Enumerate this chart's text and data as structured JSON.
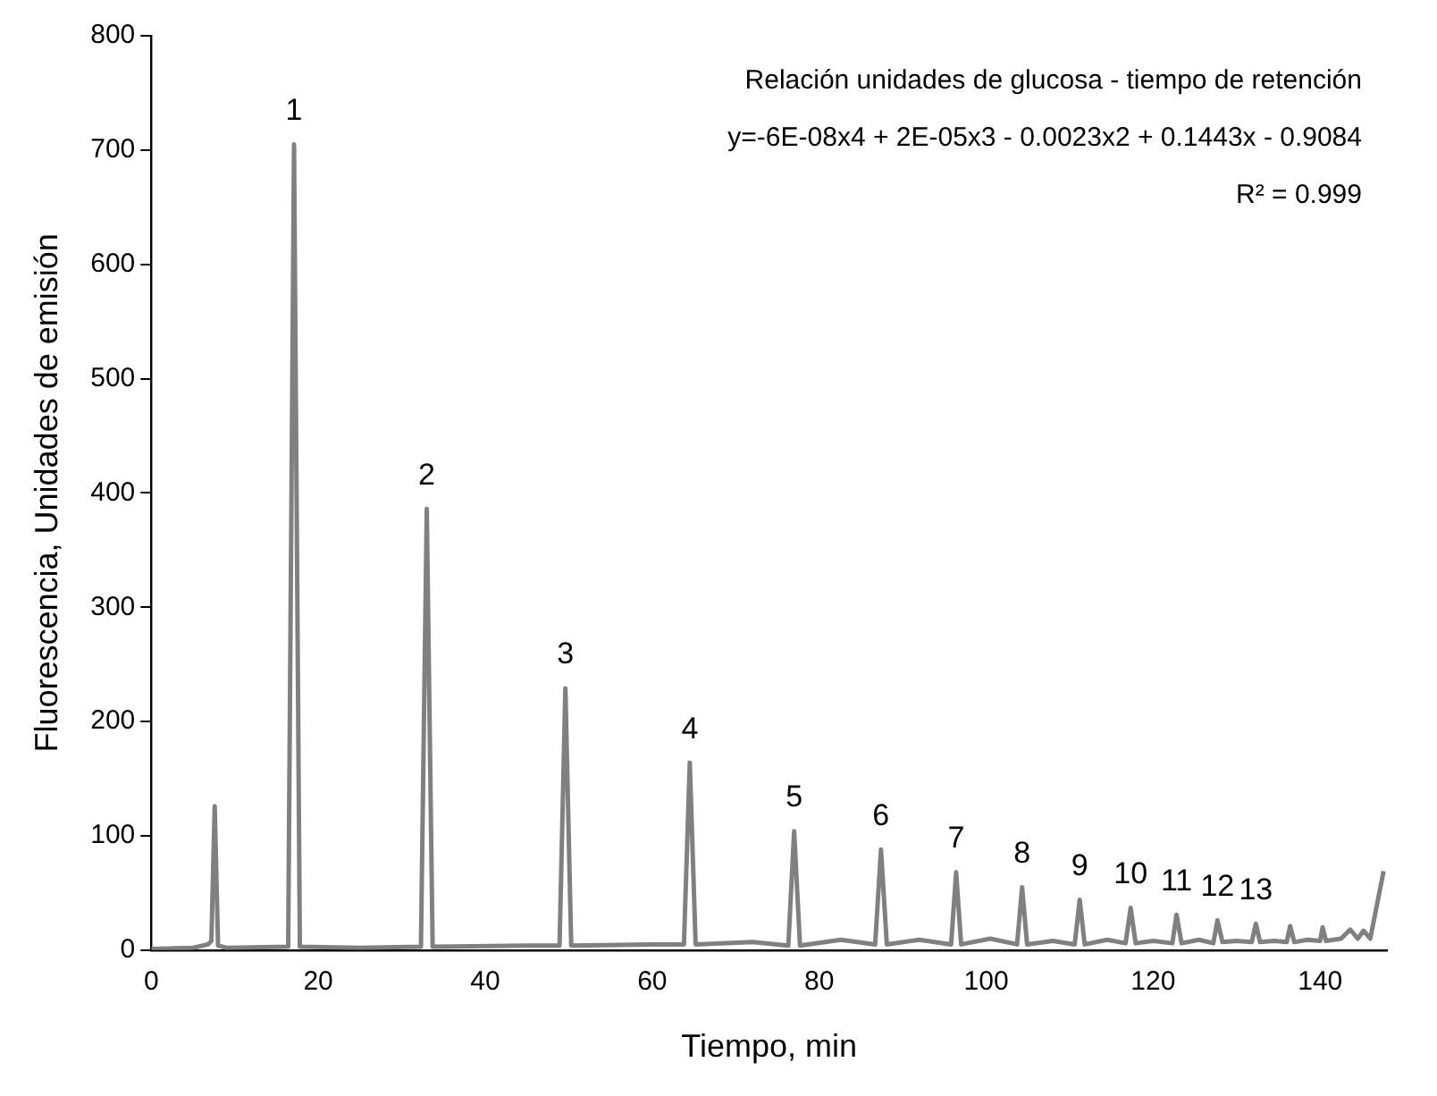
{
  "chart_data": {
    "type": "line",
    "xlabel": "Tiempo, min",
    "ylabel": "Fluorescencia, Unidades de emisión",
    "xlim": [
      0,
      148
    ],
    "xticks": [
      0,
      20,
      40,
      60,
      80,
      100,
      120,
      140
    ],
    "ylim": [
      0,
      800
    ],
    "yticks": [
      0,
      100,
      200,
      300,
      400,
      500,
      600,
      700,
      800
    ],
    "grid": false,
    "legend": false,
    "marker": "none",
    "line_style": "solid",
    "series": [
      {
        "color": "#808080",
        "x": [
          0,
          5,
          6.8,
          7.2,
          7.6,
          8.0,
          9,
          16.4,
          17.1,
          17.8,
          25,
          32.3,
          33.0,
          33.7,
          45,
          48.9,
          49.6,
          50.3,
          59.9,
          63.8,
          64.5,
          65.2,
          72,
          76.3,
          77.0,
          77.7,
          82.6,
          86.7,
          87.4,
          88.1,
          92,
          95.8,
          96.4,
          97.0,
          100.5,
          103.7,
          104.3,
          104.9,
          108,
          110.6,
          111.2,
          111.8,
          114.5,
          116.7,
          117.3,
          117.9,
          120,
          122.3,
          122.8,
          123.4,
          125.5,
          127.2,
          127.7,
          128.3,
          130,
          131.8,
          132.3,
          132.8,
          134.5,
          136,
          136.4,
          136.9,
          138.5,
          140.0,
          140.3,
          140.7,
          142.5,
          143.6,
          144.5,
          145.2,
          146,
          147.6
        ],
        "values": [
          1,
          2,
          5,
          8,
          126,
          4,
          2,
          3,
          705,
          3,
          2,
          3,
          386,
          3,
          4,
          4,
          229,
          4,
          5,
          5,
          164,
          5,
          7,
          4,
          104,
          4,
          9,
          5,
          88,
          5,
          9,
          5,
          68,
          5,
          10,
          5,
          55,
          5,
          8,
          5,
          44,
          5,
          9,
          6,
          37,
          6,
          8,
          6,
          31,
          6,
          9,
          6,
          26,
          7,
          8,
          7,
          23,
          7,
          8,
          7,
          21,
          7,
          9,
          8,
          20,
          8,
          10,
          18,
          10,
          17,
          10,
          69
        ]
      }
    ],
    "annotations": [
      "Relación unidades de glucosa - tiempo de retención",
      "y=-6E-08x4 + 2E-05x3 - 0.0023x2 + 0.1443x - 0.9084",
      "R² = 0.999",
      {
        "text": "1",
        "x": 17.1,
        "y": 705
      },
      {
        "text": "2",
        "x": 33.0,
        "y": 386
      },
      {
        "text": "3",
        "x": 49.6,
        "y": 229
      },
      {
        "text": "4",
        "x": 64.5,
        "y": 164
      },
      {
        "text": "5",
        "x": 77.0,
        "y": 104
      },
      {
        "text": "6",
        "x": 87.4,
        "y": 88
      },
      {
        "text": "7",
        "x": 96.4,
        "y": 68
      },
      {
        "text": "8",
        "x": 104.3,
        "y": 55
      },
      {
        "text": "9",
        "x": 111.2,
        "y": 44
      },
      {
        "text": "10",
        "x": 117.3,
        "y": 37
      },
      {
        "text": "11",
        "x": 122.8,
        "y": 31
      },
      {
        "text": "12",
        "x": 127.7,
        "y": 26
      },
      {
        "text": "13",
        "x": 132.3,
        "y": 23
      }
    ]
  }
}
